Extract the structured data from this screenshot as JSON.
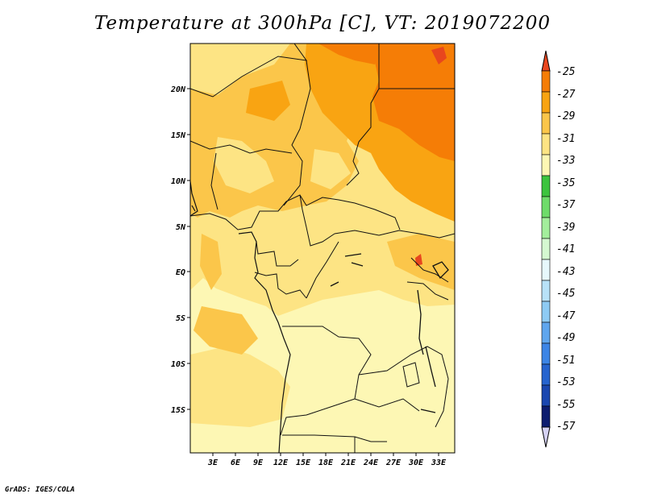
{
  "title": "Temperature at 300hPa [C], VT: 2019072200",
  "credit": "GrADS: IGES/COLA",
  "map": {
    "lat_labels": [
      "20N",
      "15N",
      "10N",
      "5N",
      "EQ",
      "5S",
      "10S",
      "15S"
    ],
    "lon_labels": [
      "3E",
      "6E",
      "9E",
      "12E",
      "15E",
      "18E",
      "21E",
      "24E",
      "27E",
      "30E",
      "33E"
    ]
  },
  "colorbar": {
    "labels": [
      "-25",
      "-27",
      "-29",
      "-31",
      "-33",
      "-35",
      "-37",
      "-39",
      "-41",
      "-43",
      "-45",
      "-47",
      "-49",
      "-51",
      "-53",
      "-55",
      "-57"
    ],
    "colors": [
      "#e8461e",
      "#f57d06",
      "#f9a412",
      "#fbc64a",
      "#fde484",
      "#fdf7b4",
      "#3cc43e",
      "#6edc6a",
      "#a3ee9c",
      "#d5f8d1",
      "#e7f8fc",
      "#b8e2f8",
      "#8ecbf4",
      "#5fa6ee",
      "#3c85e6",
      "#2664cf",
      "#1a47b0",
      "#0d1d70",
      "#d5d2f4"
    ]
  },
  "chart_data": {
    "type": "heatmap",
    "title": "Temperature at 300hPa [C], VT: 2019072200",
    "x_ticks": [
      "3E",
      "6E",
      "9E",
      "12E",
      "15E",
      "18E",
      "21E",
      "24E",
      "27E",
      "30E",
      "33E"
    ],
    "y_ticks": [
      "20N",
      "15N",
      "10N",
      "5N",
      "EQ",
      "5S",
      "10S",
      "15S"
    ],
    "legend_levels": [
      -25,
      -27,
      -29,
      -31,
      -33,
      -35,
      -37,
      -39,
      -41,
      -43,
      -45,
      -47,
      -49,
      -51,
      -53,
      -55,
      -57
    ],
    "value_range": [
      -35,
      -25
    ]
  }
}
